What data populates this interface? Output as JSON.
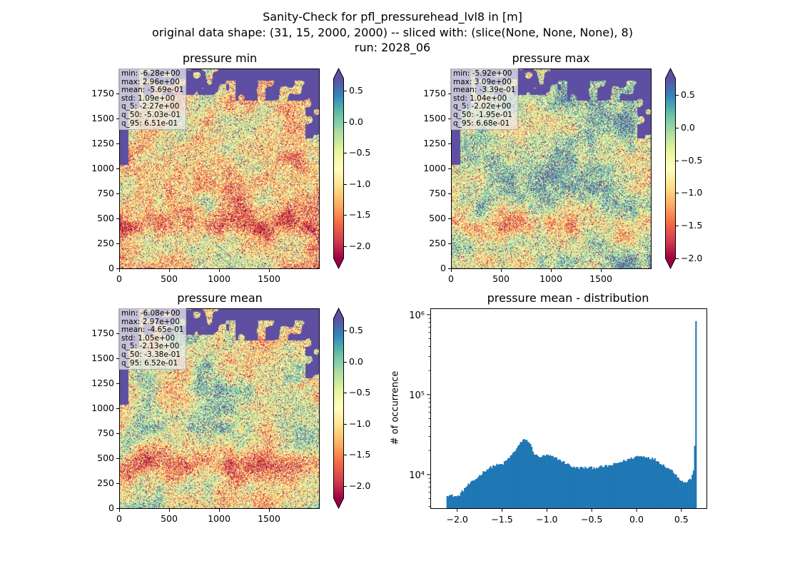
{
  "figure": {
    "title_lines": [
      "Sanity-Check for pfl_pressurehead_lvl8 in [m]",
      "original data shape: (31, 15, 2000, 2000) -- sliced with: (slice(None, None, None), 8)",
      "run: 2028_06"
    ]
  },
  "chart_data": [
    {
      "type": "heatmap",
      "title": "pressure min",
      "colormap": "Spectral",
      "xlim": [
        0,
        2000
      ],
      "ylim": [
        0,
        2000
      ],
      "xticks": [
        0,
        500,
        1000,
        1500
      ],
      "yticks": [
        0,
        250,
        500,
        750,
        1000,
        1250,
        1500,
        1750
      ],
      "colorbar": {
        "range": [
          -2.2,
          0.7
        ],
        "ticks": [
          0.5,
          0.0,
          -0.5,
          -1.0,
          -1.5,
          -2.0
        ],
        "tick_labels": [
          "0.5",
          "0.0",
          "−0.5",
          "−1.0",
          "−1.5",
          "−2.0"
        ],
        "extend": "both"
      },
      "stats": [
        "min: -6.28e+00",
        "max: 2.96e+00",
        "mean: -5.69e-01",
        "std: 1.09e+00",
        "q_5: -2.27e+00",
        "q_50: -5.03e-01",
        "q_95: 6.51e-01"
      ]
    },
    {
      "type": "heatmap",
      "title": "pressure max",
      "colormap": "Spectral",
      "xlim": [
        0,
        2000
      ],
      "ylim": [
        0,
        2000
      ],
      "xticks": [
        0,
        500,
        1000,
        1500
      ],
      "yticks": [
        0,
        250,
        500,
        750,
        1000,
        1250,
        1500,
        1750
      ],
      "colorbar": {
        "range": [
          -2.0,
          0.75
        ],
        "ticks": [
          0.5,
          0.0,
          -0.5,
          -1.0,
          -1.5,
          -2.0
        ],
        "tick_labels": [
          "0.5",
          "0.0",
          "−0.5",
          "−1.0",
          "−1.5",
          "−2.0"
        ],
        "extend": "both"
      },
      "stats": [
        "min: -5.92e+00",
        "max: 3.09e+00",
        "mean: -3.39e-01",
        "std: 1.04e+00",
        "q_5: -2.02e+00",
        "q_50: -1.95e-01",
        "q_95: 6.68e-01"
      ]
    },
    {
      "type": "heatmap",
      "title": "pressure mean",
      "colormap": "Spectral",
      "xlim": [
        0,
        2000
      ],
      "ylim": [
        0,
        2000
      ],
      "xticks": [
        0,
        500,
        1000,
        1500
      ],
      "yticks": [
        0,
        250,
        500,
        750,
        1000,
        1250,
        1500,
        1750
      ],
      "colorbar": {
        "range": [
          -2.2,
          0.7
        ],
        "ticks": [
          0.5,
          0.0,
          -0.5,
          -1.0,
          -1.5,
          -2.0
        ],
        "tick_labels": [
          "0.5",
          "0.0",
          "−0.5",
          "−1.0",
          "−1.5",
          "−2.0"
        ],
        "extend": "both"
      },
      "stats": [
        "min: -6.08e+00",
        "max: 2.97e+00",
        "mean: -4.65e-01",
        "std: 1.05e+00",
        "q_5: -2.13e+00",
        "q_50: -3.38e-01",
        "q_95: 6.52e-01"
      ]
    },
    {
      "type": "bar",
      "title": "pressure mean - distribution",
      "ylabel": "# of occurrence",
      "yscale": "log",
      "color": "#1f77b4",
      "xlim": [
        -2.3,
        0.78
      ],
      "ylim": [
        3800,
        1200000
      ],
      "xticks": [
        -2.0,
        -1.5,
        -1.0,
        -0.5,
        0.0,
        0.5
      ],
      "xtick_labels": [
        "−2.0",
        "−1.5",
        "−1.0",
        "−0.5",
        "0.0",
        "0.5"
      ],
      "yticks": [
        10000,
        100000,
        1000000
      ],
      "ytick_labels": [
        "10⁴",
        "10⁵",
        "10⁶"
      ],
      "x": [
        -2.12,
        -2.0,
        -1.9,
        -1.8,
        -1.7,
        -1.6,
        -1.5,
        -1.4,
        -1.3,
        -1.25,
        -1.2,
        -1.15,
        -1.1,
        -1.0,
        -0.9,
        -0.8,
        -0.7,
        -0.6,
        -0.5,
        -0.4,
        -0.3,
        -0.2,
        -0.1,
        0.0,
        0.1,
        0.2,
        0.3,
        0.4,
        0.5,
        0.55,
        0.6,
        0.63,
        0.645,
        0.655
      ],
      "values": [
        5600,
        5300,
        7200,
        8800,
        11200,
        13000,
        13500,
        17500,
        25000,
        28000,
        25000,
        18500,
        16500,
        17500,
        16000,
        14000,
        12200,
        12200,
        12200,
        12500,
        13000,
        14200,
        15500,
        17000,
        16800,
        15500,
        13000,
        11000,
        8200,
        8000,
        9000,
        11000,
        31000,
        850000
      ]
    }
  ]
}
